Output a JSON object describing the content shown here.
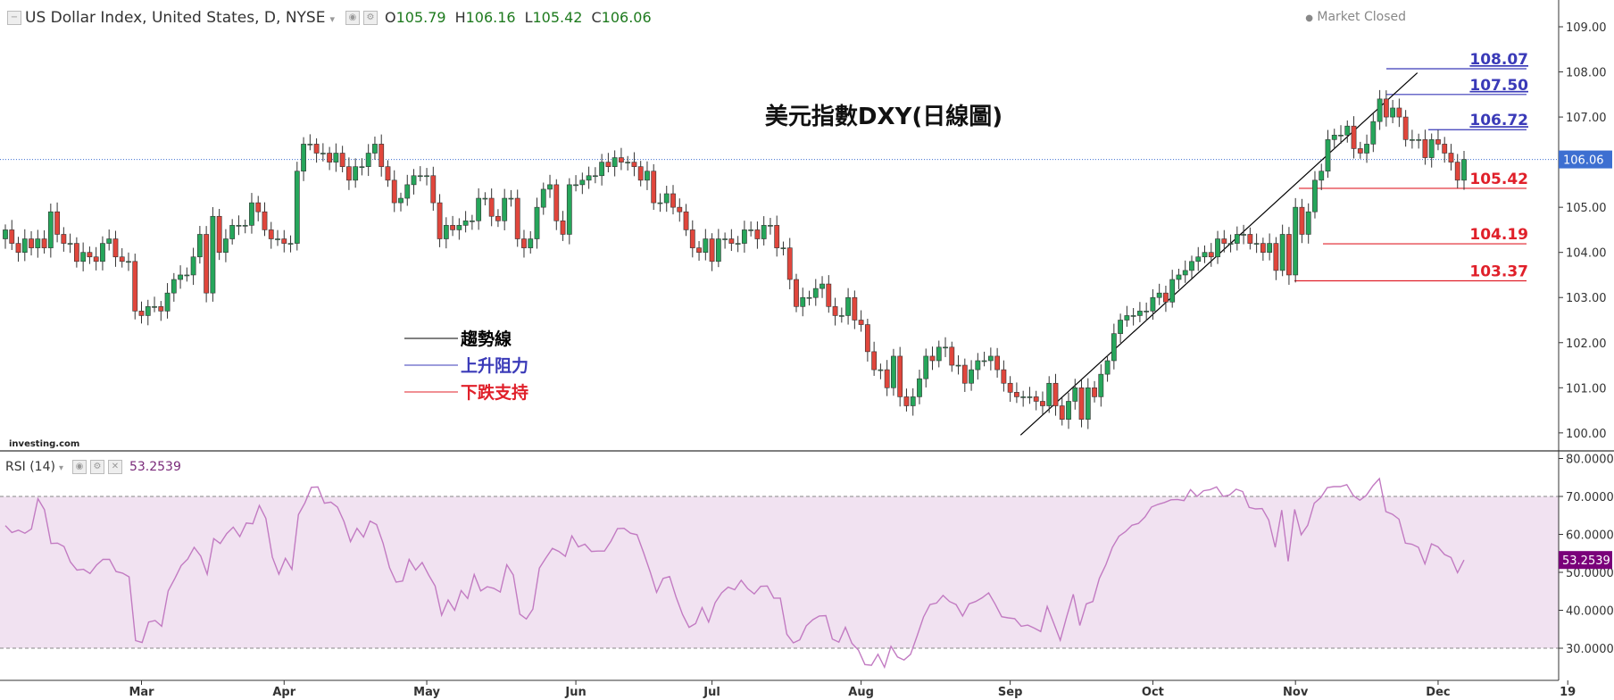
{
  "header": {
    "symbol": "US Dollar Index, United States, D, NYSE",
    "open_label": "O",
    "open": "105.79",
    "high_label": "H",
    "high": "106.16",
    "low_label": "L",
    "low": "105.42",
    "close_label": "C",
    "close": "106.06",
    "market_status": "Market Closed"
  },
  "annotation_title": "美元指數DXY(日線圖)",
  "watermark": "investing.com",
  "legend": [
    {
      "label": "趨勢線",
      "color": "#000000"
    },
    {
      "label": "上升阻力",
      "color": "#3a3ab8"
    },
    {
      "label": "下跌支持",
      "color": "#e0202a"
    }
  ],
  "colors": {
    "up": "#26a65b",
    "down": "#e0463c",
    "rsi": "#c27bc2",
    "rsi_band": "#f1e2f1",
    "last_price": "#3d6fd1",
    "rsi_value": "#7a007a"
  },
  "chart_data": [
    {
      "type": "candlestick",
      "title": "US Dollar Index, United States, D, NYSE",
      "ylim": [
        99.7,
        109.0
      ],
      "y_ticks": [
        "100.00",
        "101.00",
        "102.00",
        "103.00",
        "104.00",
        "105.00",
        "106.00",
        "107.00",
        "108.00",
        "109.00"
      ],
      "x_ticks": [
        "Mar",
        "Apr",
        "May",
        "Jun",
        "Jul",
        "Aug",
        "Sep",
        "Oct",
        "Nov",
        "Dec",
        "19"
      ],
      "last_price": {
        "value": 106.06,
        "label": "106.06"
      },
      "resistance_levels": [
        {
          "value": 108.07,
          "label": "108.07"
        },
        {
          "value": 107.5,
          "label": "107.50"
        },
        {
          "value": 106.72,
          "label": "106.72"
        }
      ],
      "support_levels": [
        {
          "value": 105.42,
          "label": "105.42"
        },
        {
          "value": 104.19,
          "label": "104.19"
        },
        {
          "value": 103.37,
          "label": "103.37"
        }
      ],
      "trendline": {
        "from": [
          0.696,
          99.95
        ],
        "to": [
          0.968,
          107.98
        ]
      },
      "closes": [
        104.5,
        104.2,
        104.0,
        104.3,
        104.1,
        104.3,
        104.1,
        104.9,
        104.4,
        104.2,
        104.2,
        103.8,
        104.0,
        103.9,
        103.8,
        104.2,
        104.3,
        103.9,
        103.8,
        103.8,
        102.7,
        102.6,
        102.8,
        102.8,
        102.7,
        103.1,
        103.4,
        103.5,
        103.5,
        103.9,
        104.4,
        103.1,
        104.8,
        104.0,
        104.3,
        104.6,
        104.6,
        104.6,
        105.1,
        104.9,
        104.5,
        104.3,
        104.3,
        104.2,
        104.2,
        105.8,
        106.4,
        106.4,
        106.2,
        106.2,
        106.0,
        106.2,
        105.9,
        105.6,
        105.9,
        105.9,
        106.2,
        106.4,
        105.9,
        105.6,
        105.1,
        105.2,
        105.5,
        105.7,
        105.7,
        105.7,
        105.1,
        104.3,
        104.6,
        104.5,
        104.6,
        104.7,
        104.7,
        105.2,
        105.2,
        104.8,
        104.7,
        105.2,
        105.2,
        104.3,
        104.1,
        104.3,
        105.0,
        105.4,
        105.5,
        104.7,
        104.4,
        105.5,
        105.5,
        105.6,
        105.7,
        105.7,
        106.0,
        105.9,
        106.1,
        106.0,
        106.0,
        105.9,
        105.6,
        105.8,
        105.1,
        105.1,
        105.3,
        105.0,
        104.9,
        104.5,
        104.1,
        104.0,
        104.3,
        103.8,
        104.3,
        104.3,
        104.2,
        104.2,
        104.5,
        104.5,
        104.3,
        104.6,
        104.6,
        104.1,
        104.1,
        103.4,
        102.8,
        103.0,
        103.0,
        103.2,
        103.3,
        102.8,
        102.6,
        102.6,
        103.0,
        102.5,
        102.4,
        101.8,
        101.4,
        101.4,
        101.0,
        101.7,
        100.8,
        100.6,
        100.8,
        101.2,
        101.7,
        101.6,
        101.9,
        101.9,
        101.5,
        101.5,
        101.1,
        101.4,
        101.6,
        101.6,
        101.7,
        101.4,
        101.1,
        100.9,
        100.8,
        100.8,
        100.8,
        100.7,
        100.6,
        101.1,
        100.6,
        100.3,
        100.7,
        101.0,
        100.3,
        101.0,
        100.8,
        101.3,
        101.6,
        102.2,
        102.5,
        102.6,
        102.6,
        102.7,
        102.7,
        103.0,
        103.1,
        102.9,
        103.4,
        103.5,
        103.6,
        103.8,
        103.9,
        104.0,
        103.9,
        104.3,
        104.2,
        104.2,
        104.4,
        104.4,
        104.2,
        104.2,
        104.0,
        104.2,
        103.6,
        104.4,
        103.5,
        105.0,
        104.4,
        104.9,
        105.6,
        105.8,
        106.5,
        106.6,
        106.6,
        106.8,
        106.3,
        106.2,
        106.4,
        106.9,
        107.4,
        107.0,
        107.2,
        107.0,
        106.5,
        106.5,
        106.5,
        106.1,
        106.5,
        106.4,
        106.2,
        106.0,
        105.6,
        106.06
      ]
    },
    {
      "type": "line",
      "title": "RSI (14)",
      "value_label": "53.2539",
      "ylim": [
        22,
        82
      ],
      "y_ticks": [
        "30.0000",
        "40.0000",
        "50.0000",
        "60.0000",
        "70.0000",
        "80.0000"
      ],
      "levels": [
        30,
        70
      ],
      "values": [
        62.3,
        60.5,
        61.1,
        60.3,
        61.4,
        69.4,
        66.5,
        57.6,
        57.7,
        56.8,
        52.7,
        50.6,
        50.8,
        49.7,
        51.9,
        53.4,
        53.4,
        50.2,
        49.8,
        48.8,
        32.0,
        31.5,
        36.9,
        37.3,
        35.8,
        45.1,
        48.3,
        51.8,
        53.5,
        56.6,
        54.3,
        49.5,
        58.9,
        57.6,
        60.2,
        61.9,
        59.4,
        63.0,
        62.8,
        67.6,
        64.2,
        54.0,
        49.5,
        53.7,
        50.8,
        65.2,
        68.3,
        72.4,
        72.5,
        68.2,
        68.5,
        67.2,
        63.4,
        58.1,
        61.6,
        59.3,
        63.5,
        62.6,
        57.7,
        51.2,
        47.4,
        47.7,
        53.4,
        50.6,
        52.6,
        49.3,
        46.4,
        38.7,
        42.7,
        40.0,
        45.2,
        43.1,
        49.4,
        45.1,
        46.2,
        45.8,
        44.8,
        52.0,
        49.3,
        39.0,
        37.7,
        40.3,
        51.1,
        53.8,
        56.3,
        55.5,
        54.2,
        59.6,
        56.7,
        57.4,
        55.5,
        55.6,
        55.6,
        58.2,
        61.5,
        61.6,
        60.3,
        59.9,
        55.2,
        50.2,
        44.7,
        48.4,
        48.9,
        43.5,
        38.9,
        35.5,
        36.5,
        40.7,
        36.9,
        42.0,
        44.6,
        46.1,
        45.4,
        47.9,
        45.7,
        44.3,
        46.3,
        46.4,
        43.2,
        43.2,
        33.7,
        31.4,
        32.2,
        35.9,
        37.5,
        38.5,
        38.6,
        32.4,
        31.6,
        35.5,
        31.3,
        29.5,
        25.7,
        25.5,
        28.4,
        25.0,
        30.5,
        27.7,
        26.9,
        28.4,
        33.2,
        38.2,
        41.5,
        41.9,
        43.9,
        42.3,
        41.5,
        38.5,
        41.7,
        42.3,
        43.3,
        44.6,
        41.6,
        38.3,
        38.0,
        37.8,
        35.8,
        36.1,
        35.3,
        34.4,
        41.0,
        36.6,
        32.1,
        38.4,
        44.2,
        36.0,
        41.7,
        42.3,
        48.4,
        52.0,
        56.6,
        59.5,
        60.7,
        62.4,
        62.9,
        64.6,
        67.2,
        67.9,
        68.4,
        69.1,
        69.2,
        68.9,
        71.8,
        70.0,
        71.5,
        71.8,
        72.5,
        70.0,
        70.4,
        71.9,
        71.3,
        67.1,
        66.7,
        66.8,
        63.8,
        56.6,
        66.4,
        52.9,
        66.6,
        59.9,
        62.4,
        68.2,
        69.7,
        72.3,
        72.6,
        72.6,
        73.1,
        70.2,
        69.0,
        70.3,
        72.8,
        74.7,
        66.0,
        65.3,
        64.0,
        57.7,
        57.4,
        56.6,
        52.2,
        57.5,
        56.7,
        54.7,
        53.9,
        49.9,
        53.25
      ]
    }
  ]
}
